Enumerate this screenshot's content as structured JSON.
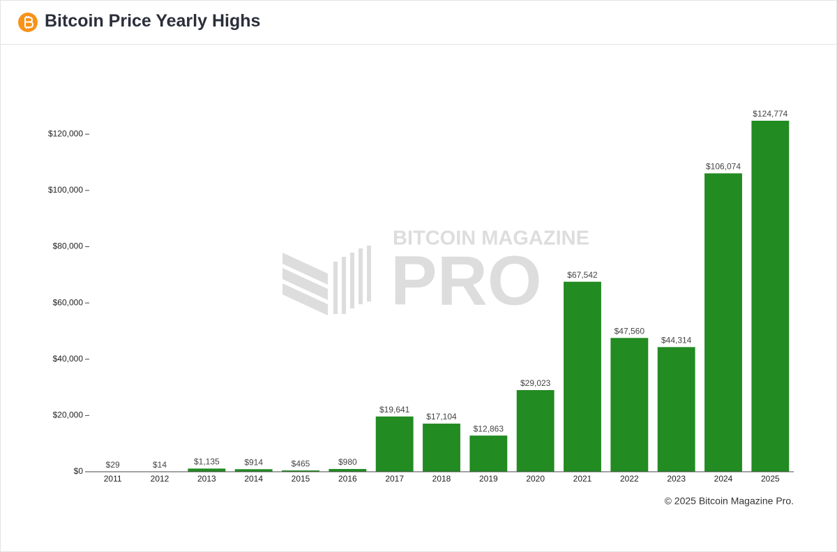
{
  "header": {
    "title": "Bitcoin Price Yearly Highs"
  },
  "chart_data": {
    "type": "bar",
    "categories": [
      "2011",
      "2012",
      "2013",
      "2014",
      "2015",
      "2016",
      "2017",
      "2018",
      "2019",
      "2020",
      "2021",
      "2022",
      "2023",
      "2024",
      "2025"
    ],
    "values": [
      29,
      14,
      1135,
      914,
      465,
      980,
      19641,
      17104,
      12863,
      29023,
      67542,
      47560,
      44314,
      106074,
      124774
    ],
    "value_labels": [
      "$29",
      "$14",
      "$1,135",
      "$914",
      "$465",
      "$980",
      "$19,641",
      "$17,104",
      "$12,863",
      "$29,023",
      "$67,542",
      "$47,560",
      "$44,314",
      "$106,074",
      "$124,774"
    ],
    "color": "#228b22",
    "ylim": [
      0,
      128000
    ],
    "yticks": [
      {
        "value": 0,
        "label": "$0"
      },
      {
        "value": 20000,
        "label": "$20,000"
      },
      {
        "value": 40000,
        "label": "$40,000"
      },
      {
        "value": 60000,
        "label": "$60,000"
      },
      {
        "value": 80000,
        "label": "$80,000"
      },
      {
        "value": 100000,
        "label": "$100,000"
      },
      {
        "value": 120000,
        "label": "$120,000"
      }
    ],
    "watermark": {
      "line1": "BITCOIN MAGAZINE",
      "line2": "PRO"
    },
    "credit": "© 2025 Bitcoin Magazine Pro."
  }
}
